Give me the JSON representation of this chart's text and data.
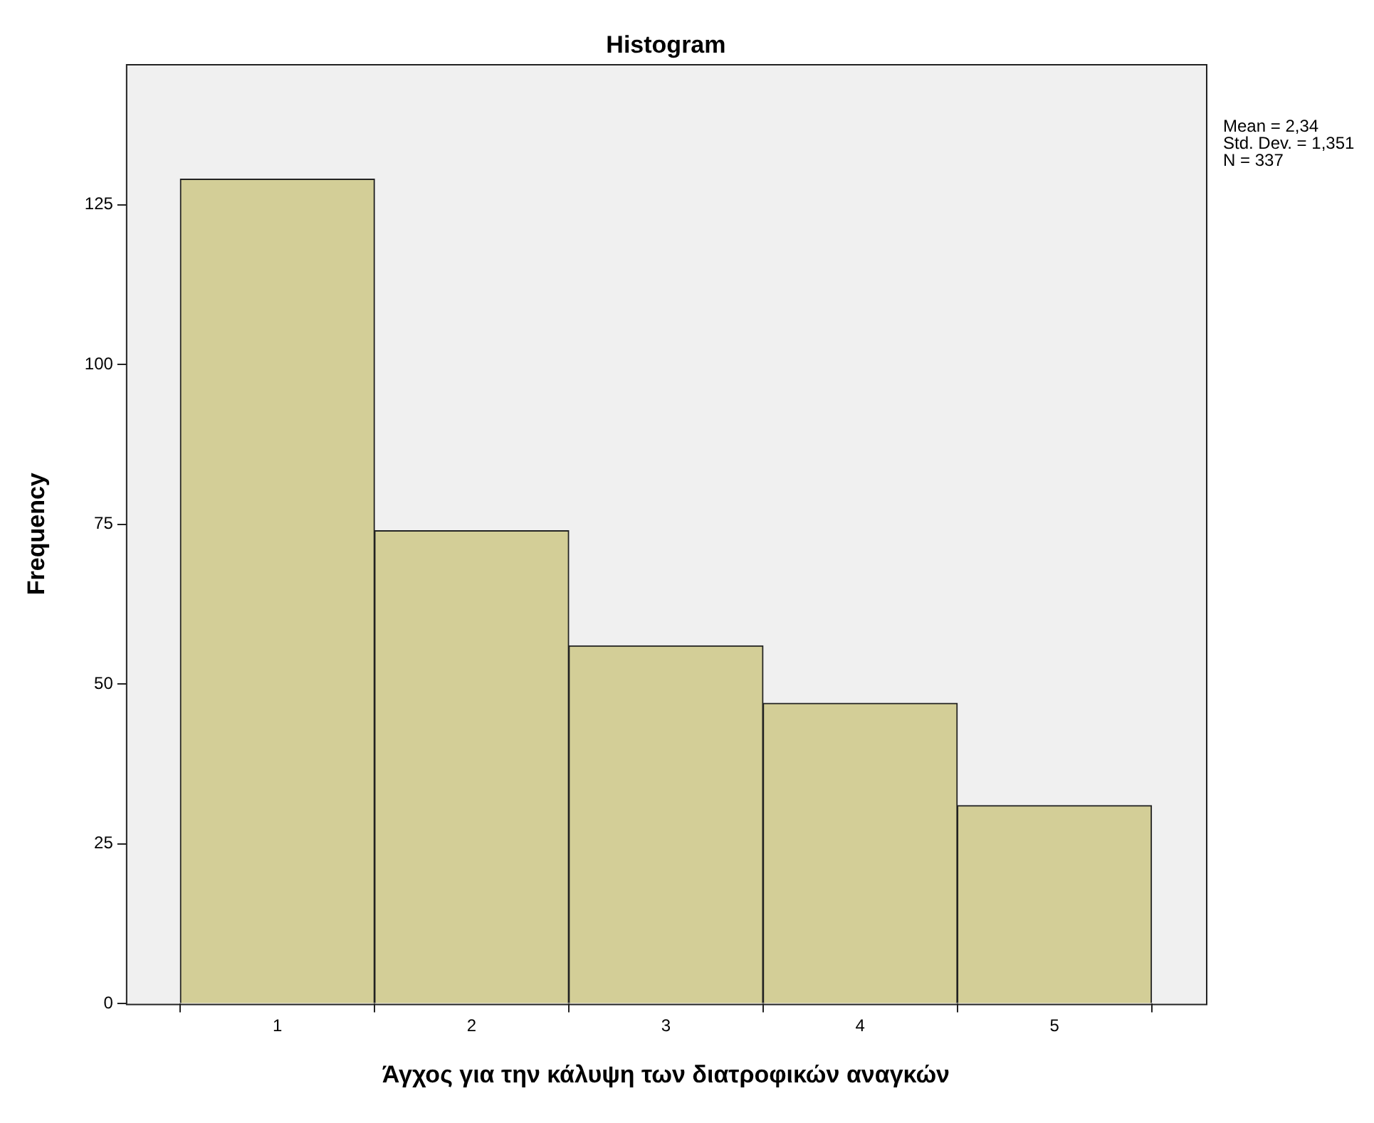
{
  "chart_data": {
    "type": "histogram",
    "title": "Histogram",
    "xlabel": "Άγχος για την κάλυψη των διατροφικών αναγκών",
    "ylabel": "Frequency",
    "bins": [
      0.5,
      1.5,
      2.5,
      3.5,
      4.5,
      5.5
    ],
    "values": [
      129,
      74,
      56,
      47,
      31
    ],
    "color": "#d3ce97",
    "xlim": [
      0.22,
      5.78
    ],
    "xticks": [
      1,
      2,
      3,
      4,
      5
    ],
    "ylim": [
      0,
      147
    ],
    "yticks": [
      0,
      25,
      50,
      75,
      100,
      125
    ],
    "grid": false,
    "legend": false,
    "annotations": [
      "Mean = 2,34",
      "Std. Dev. = 1,351",
      "N = 337"
    ]
  }
}
